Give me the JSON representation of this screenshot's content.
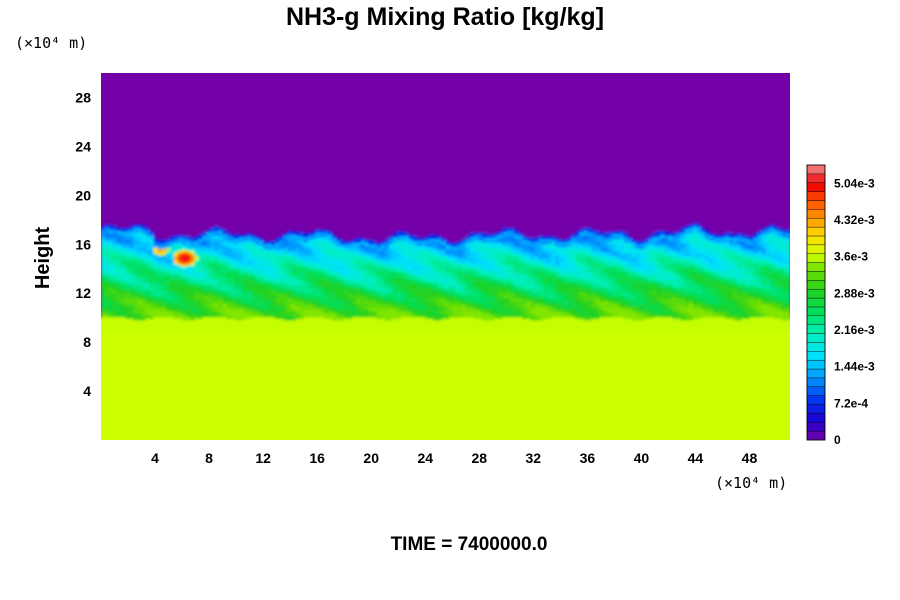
{
  "chart_data": {
    "type": "heatmap",
    "title": "NH3-g Mixing Ratio [kg/kg]",
    "ylabel": "Height",
    "xlabel": "",
    "x_unit_label": "(×10⁴ m)",
    "y_unit_label": "(×10⁴ m)",
    "xlim": [
      0,
      51
    ],
    "ylim": [
      0,
      30
    ],
    "x_ticks": [
      "4",
      "8",
      "12",
      "16",
      "20",
      "24",
      "28",
      "32",
      "36",
      "40",
      "44",
      "48"
    ],
    "y_ticks": [
      "4",
      "8",
      "12",
      "16",
      "20",
      "24",
      "28"
    ],
    "x_tick_values": [
      4,
      8,
      12,
      16,
      20,
      24,
      28,
      32,
      36,
      40,
      44,
      48
    ],
    "y_tick_values": [
      4,
      8,
      12,
      16,
      20,
      24,
      28
    ],
    "colorbar": {
      "min": 0,
      "max": 0.0054,
      "levels": 31,
      "tick_labels": [
        "0",
        "7.2e-4",
        "1.44e-3",
        "2.16e-3",
        "2.88e-3",
        "3.6e-3",
        "4.32e-3",
        "5.04e-3"
      ],
      "tick_values": [
        0,
        0.00072,
        0.00144,
        0.00216,
        0.00288,
        0.0036,
        0.00432,
        0.00504
      ]
    },
    "field_summary": {
      "lower_layer": {
        "height_range": [
          0,
          10
        ],
        "value": 0.0036
      },
      "transition_layer": {
        "height_range": [
          10,
          13
        ],
        "value_range": [
          0.003,
          0.0034
        ]
      },
      "mixed_layer": {
        "height_range": [
          13,
          16.5
        ],
        "value_range": [
          0.0012,
          0.003
        ]
      },
      "upper_layer": {
        "height_range": [
          17,
          30
        ],
        "value": 0
      }
    },
    "colors": {
      "lower_layer": "#ccff00",
      "upper_layer": "#7300a8"
    }
  },
  "footer": "TIME = 7400000.0"
}
